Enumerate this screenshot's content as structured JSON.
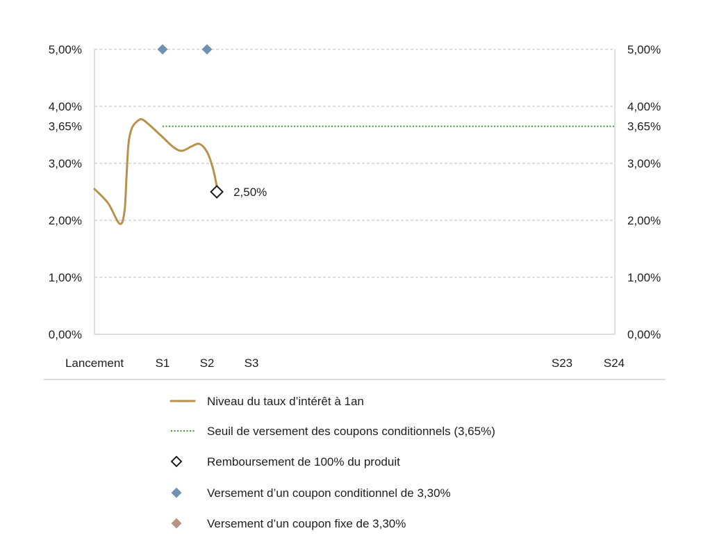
{
  "chart_data": {
    "type": "line",
    "title": "",
    "xlabel": "",
    "ylabel": "",
    "categories": [
      "Lancement",
      "S1",
      "S2",
      "S3",
      "S23",
      "S24"
    ],
    "ylim": [
      0,
      5
    ],
    "yticks": [
      {
        "value": 5,
        "label": "5,00%"
      },
      {
        "value": 4,
        "label": "4,00%"
      },
      {
        "value": 3.65,
        "label": "3,65%"
      },
      {
        "value": 3,
        "label": "3,00%"
      },
      {
        "value": 2,
        "label": "2,00%"
      },
      {
        "value": 1,
        "label": "1,00%"
      },
      {
        "value": 0,
        "label": "0,00%"
      }
    ],
    "yaxis_sides": [
      "left",
      "right"
    ],
    "grid": {
      "on": true,
      "style": "dashed",
      "values": [
        1,
        2,
        3,
        4,
        5
      ]
    },
    "legend": "bottom",
    "series": [
      {
        "name": "Niveau du taux d’intérêt à 1an",
        "type": "line",
        "color": "#B8924D",
        "points": [
          [
            0,
            2.55
          ],
          [
            0.2,
            2.3
          ],
          [
            0.37,
            1.94
          ],
          [
            0.44,
            2.15
          ],
          [
            0.47,
            2.75
          ],
          [
            0.5,
            3.35
          ],
          [
            0.55,
            3.62
          ],
          [
            0.63,
            3.74
          ],
          [
            0.7,
            3.77
          ],
          [
            0.81,
            3.67
          ],
          [
            1,
            3.46
          ],
          [
            1.25,
            3.28
          ],
          [
            1.44,
            3.22
          ],
          [
            1.66,
            3.3
          ],
          [
            1.83,
            3.34
          ],
          [
            2,
            3.2
          ],
          [
            2.13,
            2.92
          ],
          [
            2.22,
            2.6
          ]
        ]
      },
      {
        "name": "Seuil de versement des coupons conditionnels (3,65%)",
        "type": "threshold",
        "style": "dotted",
        "color": "#3E9C3A",
        "y": 3.65,
        "x_from": 1,
        "x_to": 24
      },
      {
        "name": "Remboursement de 100% du produit",
        "type": "marker",
        "marker": "hollow-diamond",
        "color": "#1E1E1E",
        "points": [
          {
            "x": 2.22,
            "y": 2.5,
            "label": "2,50%"
          }
        ]
      },
      {
        "name": "Versement d’un coupon conditionnel de 3,30%",
        "type": "marker",
        "marker": "diamond",
        "color": "#6E93B2",
        "points": [
          {
            "x": 1,
            "y": 5
          },
          {
            "x": 2,
            "y": 5
          }
        ]
      },
      {
        "name": "Versement d’un coupon fixe de 3,30%",
        "type": "marker",
        "marker": "diamond",
        "color": "#B59583",
        "points": []
      }
    ]
  }
}
